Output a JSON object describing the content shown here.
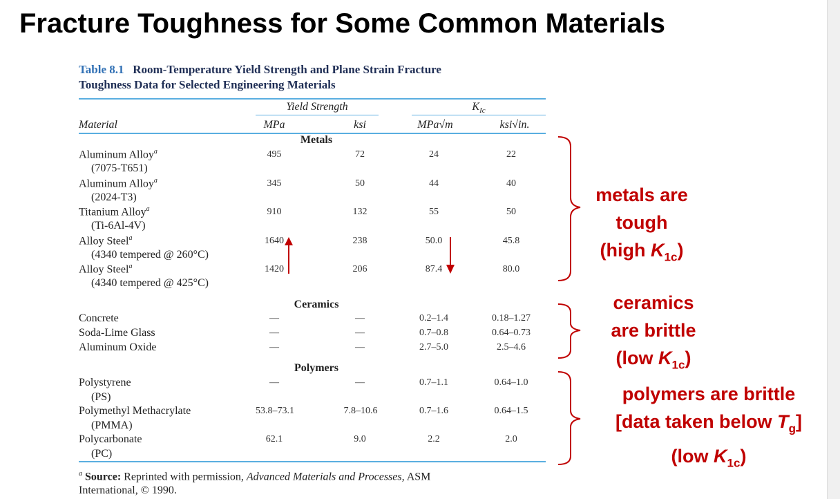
{
  "slide": {
    "title": "Fracture Toughness for Some Common Materials"
  },
  "table": {
    "caption_number": "Table 8.1",
    "caption_line1": "Room-Temperature Yield Strength and Plane Strain Fracture",
    "caption_line2": "Toughness Data for Selected Engineering Materials",
    "group_headers": {
      "yield": "Yield Strength",
      "kic": "K",
      "kic_sub": "Ic"
    },
    "columns": {
      "material": "Material",
      "mpa": "MPa",
      "ksi": "ksi",
      "mpa_sqrt_m": "MPa√m",
      "ksi_sqrt_in": "ksi√in."
    },
    "sections": {
      "metals": "Metals",
      "ceramics": "Ceramics",
      "polymers": "Polymers"
    },
    "rows": [
      {
        "name": "Aluminum Alloy",
        "sup": "a",
        "sub": "(7075-T651)",
        "mpa": "495",
        "ksi": "72",
        "kic_mpa": "24",
        "kic_ksi": "22"
      },
      {
        "name": "Aluminum Alloy",
        "sup": "a",
        "sub": "(2024-T3)",
        "mpa": "345",
        "ksi": "50",
        "kic_mpa": "44",
        "kic_ksi": "40"
      },
      {
        "name": "Titanium Alloy",
        "sup": "a",
        "sub": "(Ti-6Al-4V)",
        "mpa": "910",
        "ksi": "132",
        "kic_mpa": "55",
        "kic_ksi": "50"
      },
      {
        "name": "Alloy Steel",
        "sup": "a",
        "sub": "(4340 tempered @ 260°C)",
        "mpa": "1640",
        "ksi": "238",
        "kic_mpa": "50.0",
        "kic_ksi": "45.8"
      },
      {
        "name": "Alloy Steel",
        "sup": "a",
        "sub": "(4340 tempered @ 425°C)",
        "mpa": "1420",
        "ksi": "206",
        "kic_mpa": "87.4",
        "kic_ksi": "80.0"
      },
      {
        "name": "Concrete",
        "mpa": "—",
        "ksi": "—",
        "kic_mpa": "0.2–1.4",
        "kic_ksi": "0.18–1.27"
      },
      {
        "name": "Soda-Lime Glass",
        "mpa": "—",
        "ksi": "—",
        "kic_mpa": "0.7–0.8",
        "kic_ksi": "0.64–0.73"
      },
      {
        "name": "Aluminum Oxide",
        "mpa": "—",
        "ksi": "—",
        "kic_mpa": "2.7–5.0",
        "kic_ksi": "2.5–4.6"
      },
      {
        "name": "Polystyrene",
        "sub": "(PS)",
        "mpa": "—",
        "ksi": "—",
        "kic_mpa": "0.7–1.1",
        "kic_ksi": "0.64–1.0"
      },
      {
        "name": "Polymethyl Methacrylate",
        "sub": "(PMMA)",
        "mpa": "53.8–73.1",
        "ksi": "7.8–10.6",
        "kic_mpa": "0.7–1.6",
        "kic_ksi": "0.64–1.5"
      },
      {
        "name": "Polycarbonate",
        "sub": "(PC)",
        "mpa": "62.1",
        "ksi": "9.0",
        "kic_mpa": "2.2",
        "kic_ksi": "2.0"
      }
    ],
    "footnote": {
      "mark": "a",
      "label": "Source:",
      "text1": "Reprinted with permission,",
      "pub": "Advanced Materials and Processes,",
      "text2": "ASM",
      "line2": "International, © 1990."
    }
  },
  "annotations": {
    "metals": {
      "line1": "metals are",
      "line2": "tough",
      "line3_pre": "(high ",
      "k": "K",
      "ksub": "1c",
      "line3_post": ")"
    },
    "ceramics": {
      "line1": "ceramics",
      "line2": "are brittle",
      "line3_pre": "(low ",
      "k": "K",
      "ksub": "1c",
      "line3_post": ")"
    },
    "polymers": {
      "line1": "polymers are brittle",
      "line2_pre": "[data taken below ",
      "t": "T",
      "tsub": "g",
      "line2_post": "]",
      "line3_pre": "(low ",
      "k": "K",
      "ksub": "1c",
      "line3_post": ")"
    }
  },
  "colors": {
    "accent_red": "#c00000",
    "rule_blue": "#5aaee0",
    "caption_blue": "#2f6fb4"
  }
}
